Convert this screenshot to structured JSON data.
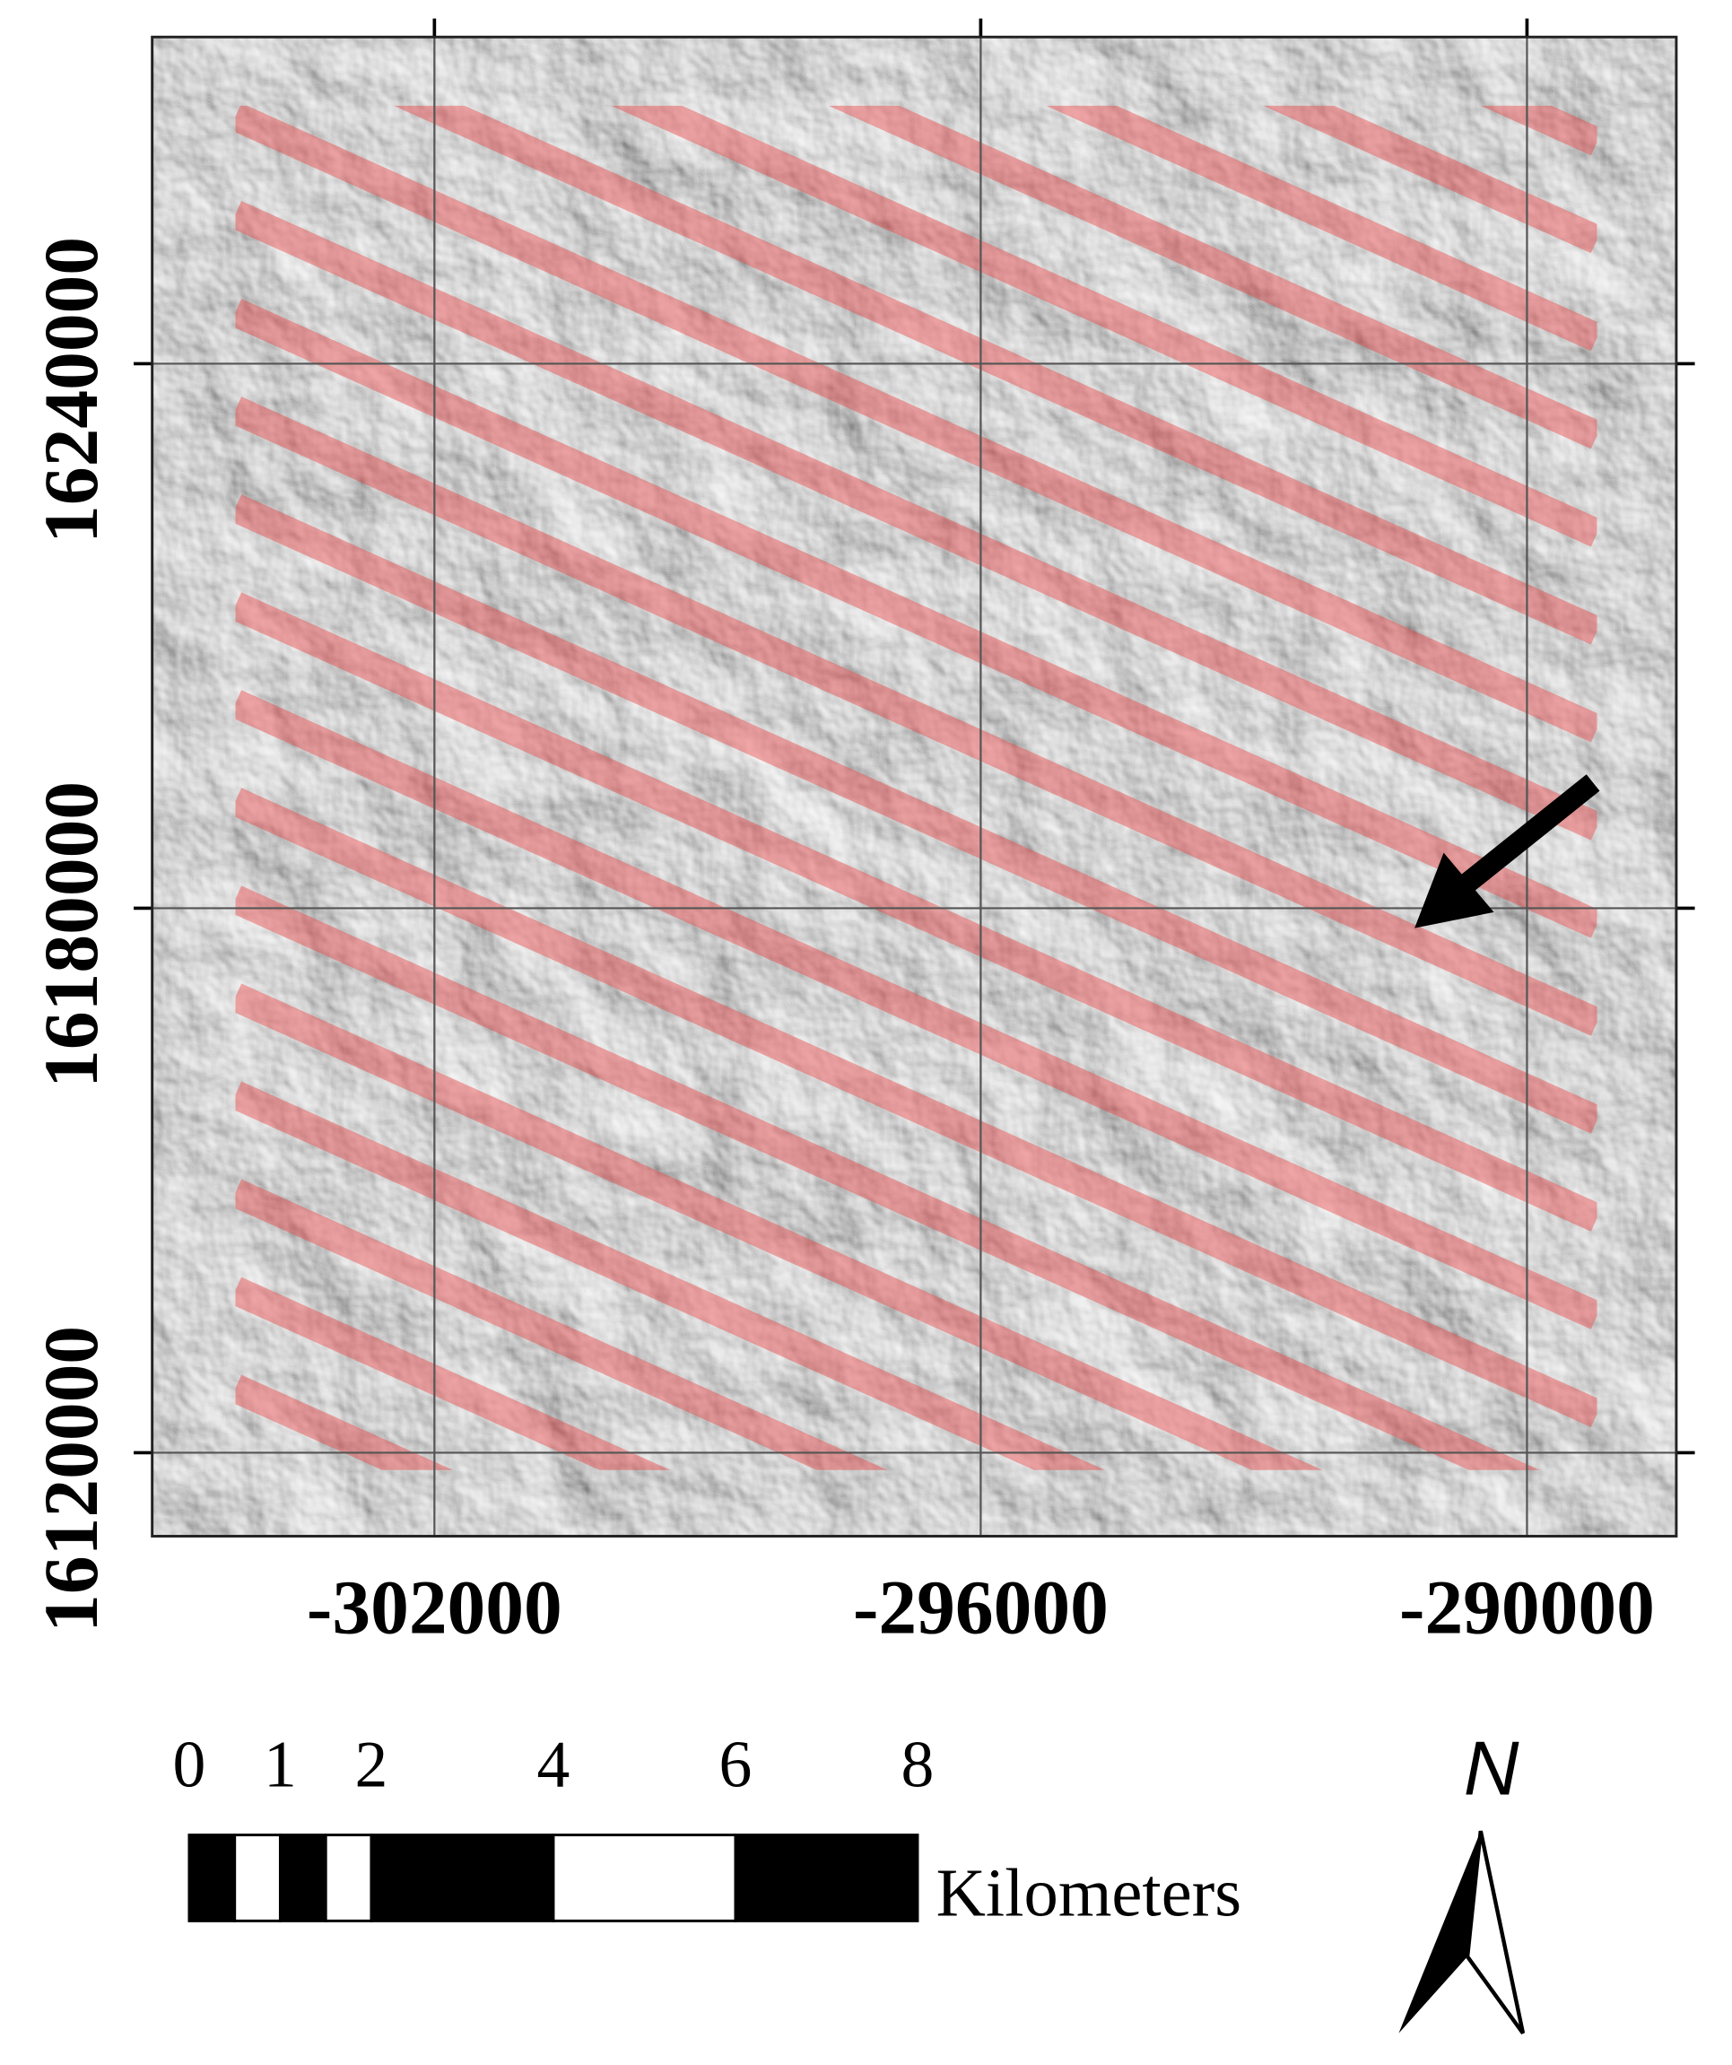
{
  "map": {
    "xlim": [
      -305100,
      -288360
    ],
    "ylim": [
      16110800,
      16276000
    ],
    "xticks": [
      -302000,
      -296000,
      -290000
    ],
    "yticks": [
      16120000,
      16180000,
      16240000
    ],
    "grid": true
  },
  "scale_bar": {
    "ticks": [
      0,
      1,
      2,
      4,
      6,
      8
    ],
    "unit": "Kilometers"
  },
  "north_label": "N"
}
